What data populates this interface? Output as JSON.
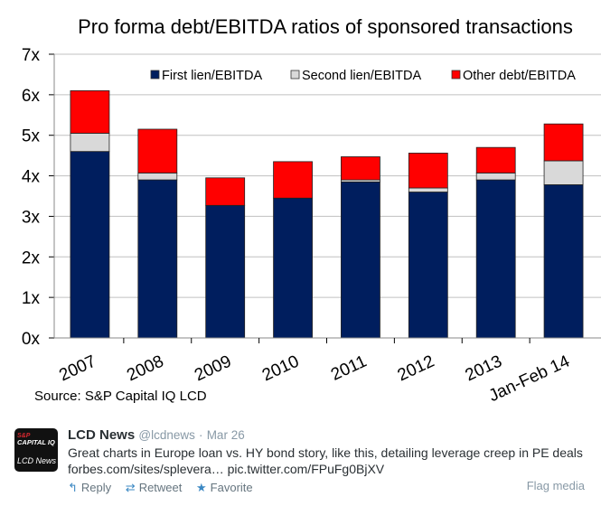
{
  "chart_data": {
    "type": "bar",
    "stacked": true,
    "title": "Pro forma debt/EBITDA ratios of sponsored transactions",
    "xlabel": "",
    "ylabel": "",
    "categories": [
      "2007",
      "2008",
      "2009",
      "2010",
      "2011",
      "2012",
      "2013",
      "Jan-Feb 14"
    ],
    "series": [
      {
        "name": "First lien/EBITDA",
        "color": "#001e5e",
        "values": [
          4.6,
          3.9,
          3.27,
          3.45,
          3.85,
          3.6,
          3.9,
          3.78
        ]
      },
      {
        "name": "Second lien/EBITDA",
        "color": "#d9d9d9",
        "values": [
          0.45,
          0.17,
          0.0,
          0.0,
          0.05,
          0.1,
          0.17,
          0.59
        ]
      },
      {
        "name": "Other debt/EBITDA",
        "color": "#ff0000",
        "values": [
          1.05,
          1.08,
          0.68,
          0.9,
          0.57,
          0.86,
          0.63,
          0.91
        ]
      }
    ],
    "ylim": [
      0,
      7
    ],
    "yticks": [
      "0x",
      "1x",
      "2x",
      "3x",
      "4x",
      "5x",
      "6x",
      "7x"
    ],
    "grid": true,
    "legend": "top",
    "source": "Source: S&P Capital IQ LCD"
  },
  "tweet": {
    "avatar": {
      "line1": "S&P",
      "line2": "CAPITAL IQ",
      "line3": "LCD News"
    },
    "name": "LCD News",
    "handle": "@lcdnews",
    "separator": "·",
    "date": "Mar 26",
    "text_line1": "Great charts in Europe loan vs. HY bond story, like this, detailing leverage creep in PE deals",
    "text_line2": "forbes.com/sites/splevera… pic.twitter.com/FPuFg0BjXV",
    "actions": {
      "reply": {
        "icon": "reply-icon",
        "glyph": "↰",
        "label": "Reply"
      },
      "retweet": {
        "icon": "retweet-icon",
        "glyph": "⇄",
        "label": "Retweet"
      },
      "favorite": {
        "icon": "star-icon",
        "glyph": "★",
        "label": "Favorite"
      }
    },
    "flag": "Flag media"
  }
}
